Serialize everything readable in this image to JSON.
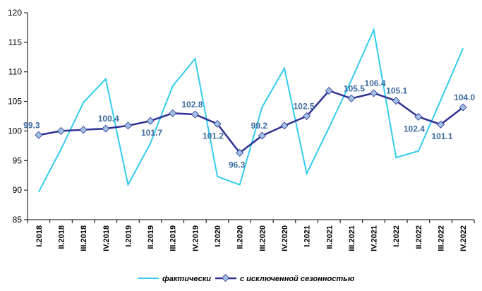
{
  "chart_data": {
    "type": "line",
    "categories": [
      "I.2018",
      "II.2018",
      "III.2018",
      "IV.2018",
      "I.2019",
      "II.2019",
      "III.2019",
      "IV.2019",
      "I.2020",
      "II.2020",
      "III.2020",
      "IV.2020",
      "I.2021",
      "II.2021",
      "III.2021",
      "IV.2021",
      "I.2022",
      "II.2022",
      "III.2022",
      "IV.2022"
    ],
    "series": [
      {
        "name": "фактически",
        "color": "#33ccee",
        "values": [
          89.7,
          96.9,
          104.8,
          108.8,
          90.9,
          97.9,
          107.6,
          112.2,
          92.3,
          90.9,
          104.0,
          110.6,
          92.8,
          100.6,
          108.6,
          117.1,
          95.5,
          96.6,
          105.2,
          114.0
        ]
      },
      {
        "name": "с исключенной сезонностью",
        "color": "#2e3192",
        "values": [
          99.3,
          100.0,
          100.2,
          100.4,
          100.9,
          101.7,
          103.0,
          102.8,
          101.2,
          96.3,
          99.2,
          100.9,
          102.5,
          106.8,
          105.5,
          106.4,
          105.1,
          102.4,
          101.1,
          104.0
        ],
        "data_labels": {
          "0": "99.3",
          "3": "100.4",
          "5": "101.7",
          "7": "102.8",
          "8": "101.2",
          "9": "96.3",
          "10": "99.2",
          "12": "102.5",
          "14": "105.5",
          "15": "106.4",
          "16": "105.1",
          "17": "102.4",
          "18": "101.1",
          "19": "104.0"
        }
      }
    ],
    "ylim": [
      85,
      120
    ],
    "yticks": [
      85,
      90,
      95,
      100,
      105,
      110,
      115,
      120
    ],
    "grid": false,
    "legend_position": "bottom",
    "label_color": "#3d6b9e"
  }
}
